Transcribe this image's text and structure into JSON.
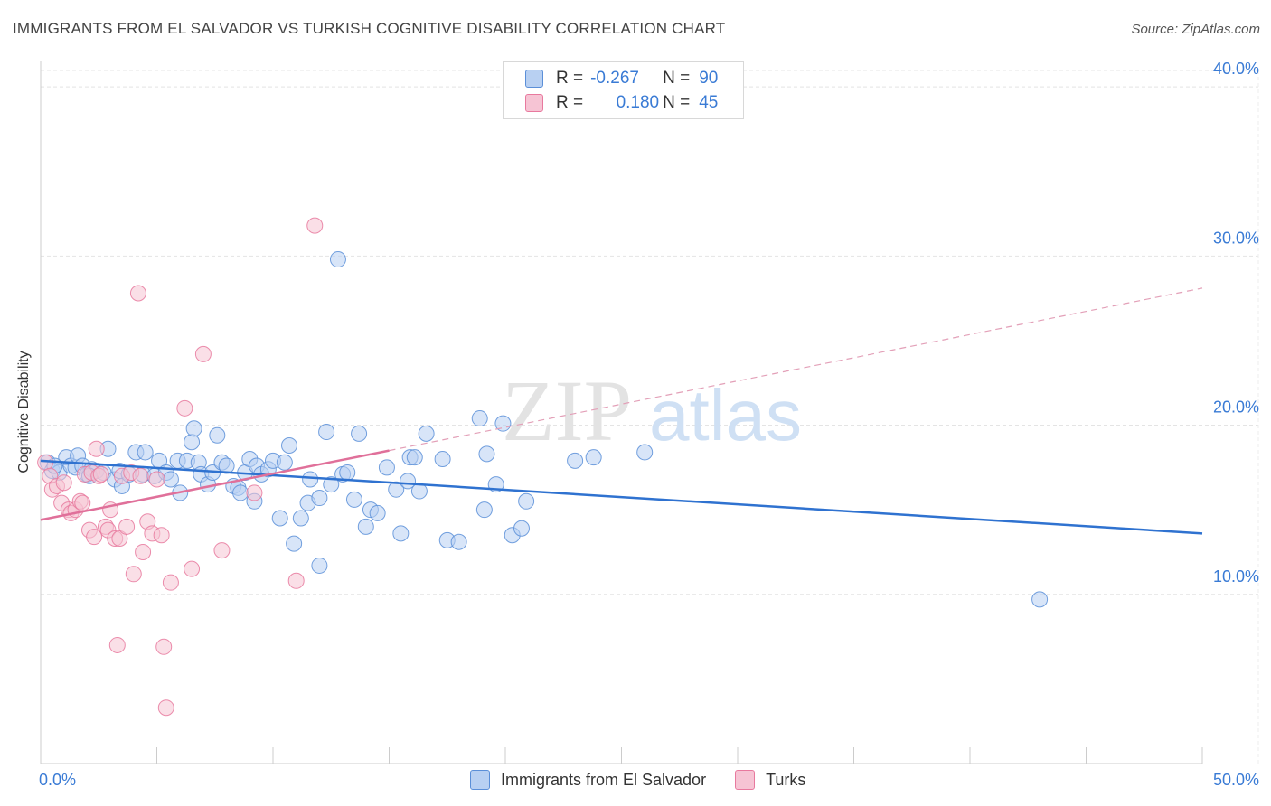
{
  "header": {
    "title": "IMMIGRANTS FROM EL SALVADOR VS TURKISH COGNITIVE DISABILITY CORRELATION CHART",
    "source": "Source: ZipAtlas.com"
  },
  "legend": {
    "rows": [
      {
        "r_label": "R =",
        "r_value": "-0.267",
        "n_label": "N =",
        "n_value": "90"
      },
      {
        "r_label": "R =",
        "r_value": "0.180",
        "n_label": "N =",
        "n_value": "45"
      }
    ]
  },
  "watermark": {
    "zip": "ZIP",
    "atlas": "atlas"
  },
  "chart_data": {
    "type": "scatter",
    "ylabel": "Cognitive Disability",
    "xlim": [
      0,
      50
    ],
    "ylim": [
      0,
      41.5
    ],
    "x_tick_labels": [
      "0.0%",
      "50.0%"
    ],
    "y_ticks": [
      10,
      20,
      30,
      40
    ],
    "y_tick_labels": [
      "10.0%",
      "20.0%",
      "30.0%",
      "40.0%"
    ],
    "grid": true,
    "legend_position": "top-center",
    "colors": {
      "blue": "#5b8fd8",
      "pink": "#e8799e",
      "blue_fill": "#b8d0f2",
      "pink_fill": "#f6c4d4"
    },
    "series": [
      {
        "name": "Immigrants from El Salvador",
        "color": "#5b8fd8",
        "trend": {
          "x": [
            0,
            50
          ],
          "y": [
            17.9,
            13.6
          ],
          "style": "solid"
        },
        "points": [
          [
            0.3,
            17.8
          ],
          [
            0.5,
            17.3
          ],
          [
            0.8,
            17.2
          ],
          [
            1.1,
            18.1
          ],
          [
            1.3,
            17.6
          ],
          [
            1.5,
            17.5
          ],
          [
            1.6,
            18.2
          ],
          [
            1.8,
            17.6
          ],
          [
            2.0,
            17.1
          ],
          [
            2.2,
            17.4
          ],
          [
            2.4,
            17.3
          ],
          [
            2.7,
            17.2
          ],
          [
            2.9,
            18.6
          ],
          [
            3.2,
            16.8
          ],
          [
            3.4,
            17.3
          ],
          [
            3.5,
            16.4
          ],
          [
            3.8,
            17.1
          ],
          [
            4.1,
            18.4
          ],
          [
            4.4,
            17.1
          ],
          [
            4.5,
            18.4
          ],
          [
            4.9,
            17.0
          ],
          [
            5.1,
            17.9
          ],
          [
            5.4,
            17.2
          ],
          [
            5.6,
            16.8
          ],
          [
            5.9,
            17.9
          ],
          [
            6.0,
            16.0
          ],
          [
            6.3,
            17.9
          ],
          [
            6.5,
            19.0
          ],
          [
            6.6,
            19.8
          ],
          [
            6.8,
            17.8
          ],
          [
            6.9,
            17.1
          ],
          [
            7.2,
            16.5
          ],
          [
            7.4,
            17.2
          ],
          [
            7.6,
            19.4
          ],
          [
            7.8,
            17.8
          ],
          [
            8.0,
            17.6
          ],
          [
            8.3,
            16.4
          ],
          [
            8.5,
            16.3
          ],
          [
            8.6,
            16.0
          ],
          [
            8.8,
            17.2
          ],
          [
            9.0,
            18.0
          ],
          [
            9.2,
            15.5
          ],
          [
            9.3,
            17.6
          ],
          [
            9.5,
            17.1
          ],
          [
            9.8,
            17.4
          ],
          [
            10.0,
            17.9
          ],
          [
            10.3,
            14.5
          ],
          [
            10.5,
            17.8
          ],
          [
            10.7,
            18.8
          ],
          [
            10.9,
            13.0
          ],
          [
            11.2,
            14.5
          ],
          [
            11.5,
            15.4
          ],
          [
            11.6,
            16.8
          ],
          [
            12.0,
            11.7
          ],
          [
            12.0,
            15.7
          ],
          [
            12.3,
            19.6
          ],
          [
            12.5,
            16.5
          ],
          [
            12.8,
            29.8
          ],
          [
            13.0,
            17.1
          ],
          [
            13.2,
            17.2
          ],
          [
            13.5,
            15.6
          ],
          [
            13.7,
            19.5
          ],
          [
            14.0,
            14.0
          ],
          [
            14.2,
            15.0
          ],
          [
            14.5,
            14.8
          ],
          [
            14.9,
            17.5
          ],
          [
            15.3,
            16.2
          ],
          [
            15.5,
            13.6
          ],
          [
            15.8,
            16.7
          ],
          [
            15.9,
            18.1
          ],
          [
            16.1,
            18.1
          ],
          [
            16.3,
            16.1
          ],
          [
            16.6,
            19.5
          ],
          [
            17.3,
            18.0
          ],
          [
            17.5,
            13.2
          ],
          [
            18.0,
            13.1
          ],
          [
            18.9,
            20.4
          ],
          [
            19.1,
            15.0
          ],
          [
            19.2,
            18.3
          ],
          [
            19.6,
            16.5
          ],
          [
            19.9,
            20.1
          ],
          [
            20.3,
            13.5
          ],
          [
            20.7,
            13.9
          ],
          [
            20.9,
            15.5
          ],
          [
            23.0,
            17.9
          ],
          [
            23.8,
            18.1
          ],
          [
            26.0,
            18.4
          ],
          [
            43.0,
            9.7
          ],
          [
            2.1,
            17.0
          ],
          [
            0.6,
            17.6
          ]
        ]
      },
      {
        "name": "Turks",
        "color": "#e8799e",
        "trend": {
          "x": [
            0,
            15
          ],
          "y": [
            14.4,
            18.5
          ],
          "style": "solid",
          "extension": {
            "x": [
              15,
              50
            ],
            "y": [
              18.5,
              28.1
            ],
            "style": "dashed"
          }
        },
        "points": [
          [
            0.2,
            17.8
          ],
          [
            0.4,
            17.0
          ],
          [
            0.5,
            16.2
          ],
          [
            0.7,
            16.4
          ],
          [
            0.9,
            15.4
          ],
          [
            1.0,
            16.6
          ],
          [
            1.2,
            15.0
          ],
          [
            1.3,
            14.8
          ],
          [
            1.5,
            15.0
          ],
          [
            1.7,
            15.5
          ],
          [
            1.8,
            15.4
          ],
          [
            1.9,
            17.1
          ],
          [
            2.1,
            13.8
          ],
          [
            2.2,
            17.2
          ],
          [
            2.3,
            13.4
          ],
          [
            2.4,
            18.6
          ],
          [
            2.5,
            17.0
          ],
          [
            2.6,
            17.1
          ],
          [
            2.8,
            14.0
          ],
          [
            2.9,
            13.8
          ],
          [
            3.0,
            15.0
          ],
          [
            3.2,
            13.3
          ],
          [
            3.3,
            7.0
          ],
          [
            3.4,
            13.3
          ],
          [
            3.5,
            17.0
          ],
          [
            3.7,
            14.0
          ],
          [
            3.9,
            17.2
          ],
          [
            4.0,
            11.2
          ],
          [
            4.2,
            27.8
          ],
          [
            4.3,
            17.0
          ],
          [
            4.4,
            12.5
          ],
          [
            4.6,
            14.3
          ],
          [
            4.8,
            13.6
          ],
          [
            5.0,
            16.8
          ],
          [
            5.2,
            13.5
          ],
          [
            5.3,
            6.9
          ],
          [
            5.4,
            3.3
          ],
          [
            5.6,
            10.7
          ],
          [
            6.2,
            21.0
          ],
          [
            6.5,
            11.5
          ],
          [
            7.0,
            24.2
          ],
          [
            7.8,
            12.6
          ],
          [
            9.2,
            16.0
          ],
          [
            11.0,
            10.8
          ],
          [
            11.8,
            31.8
          ]
        ]
      }
    ]
  }
}
